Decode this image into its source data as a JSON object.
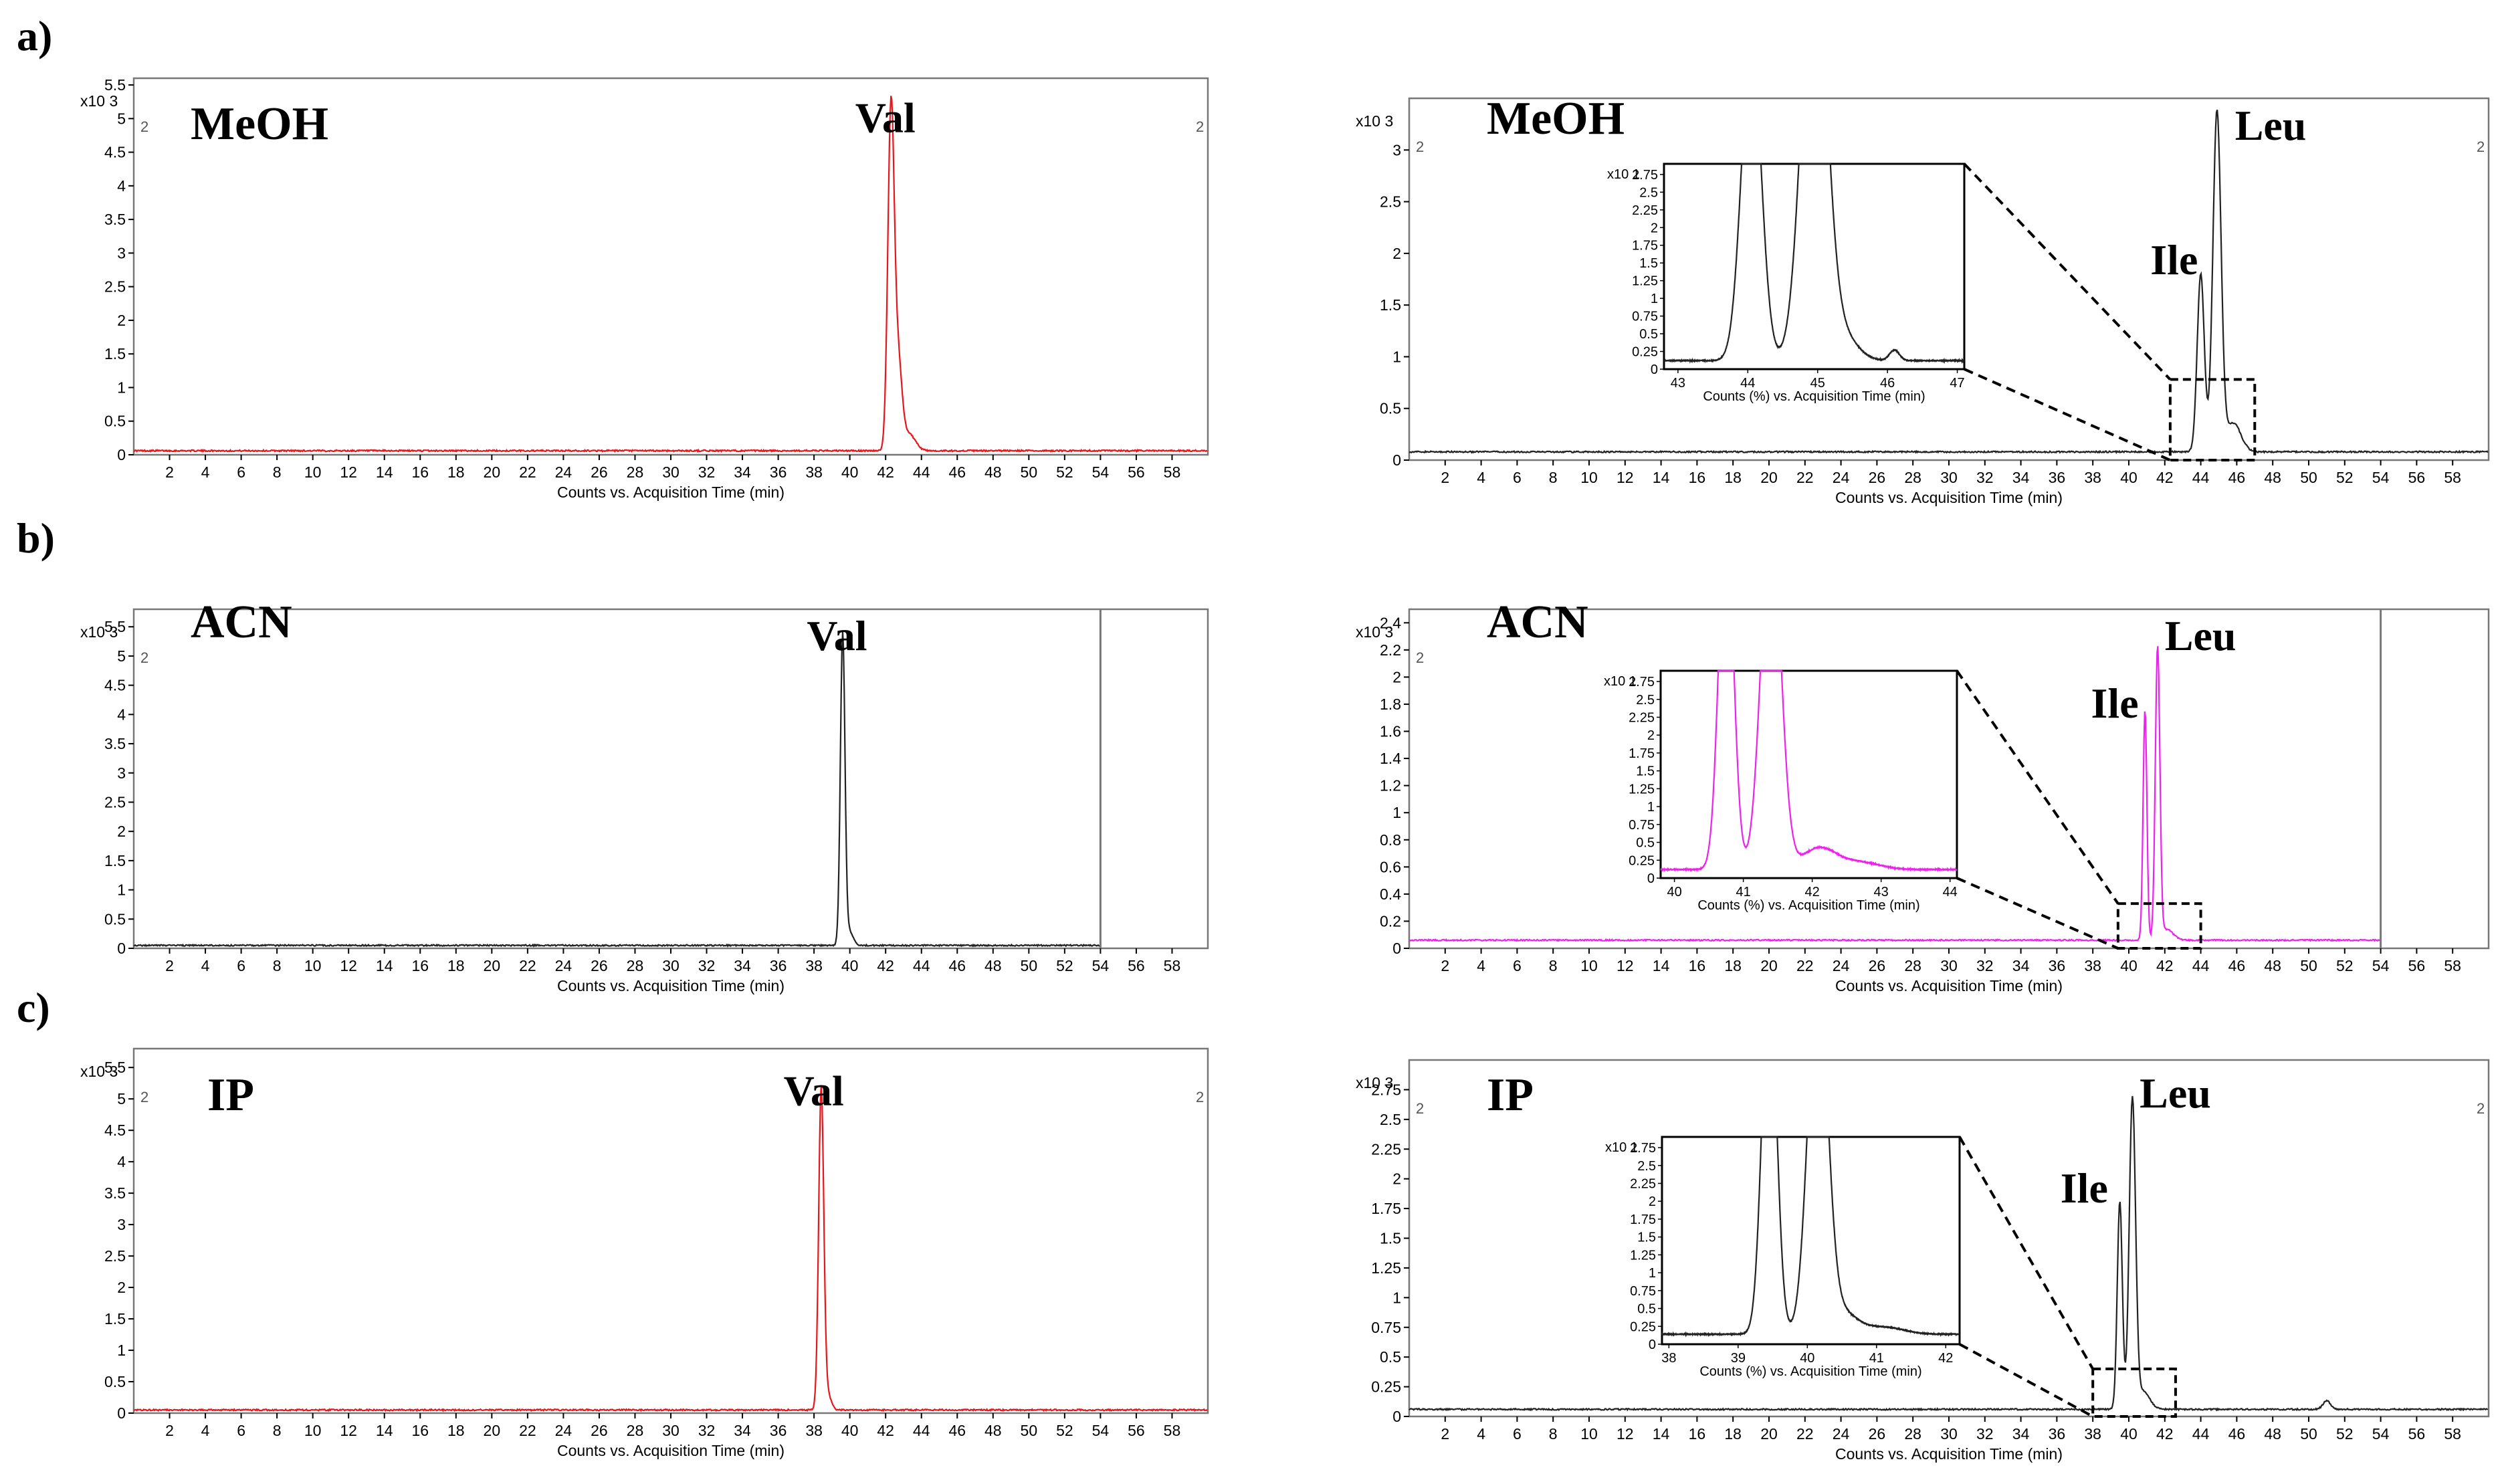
{
  "chart_data": [
    {
      "id": "a-left",
      "row": "a)",
      "type": "line",
      "solvent": "MeOH",
      "xlabel": "Counts vs. Acquisition Time (min)",
      "exponent": "x10 3",
      "xlim": [
        0,
        60
      ],
      "ylim": [
        0,
        5.6
      ],
      "color": "#e8151b",
      "xticks": [
        "2",
        "4",
        "6",
        "8",
        "10",
        "12",
        "14",
        "16",
        "18",
        "20",
        "22",
        "24",
        "26",
        "28",
        "30",
        "32",
        "34",
        "36",
        "38",
        "40",
        "42",
        "44",
        "46",
        "48",
        "50",
        "52",
        "54",
        "56",
        "58"
      ],
      "yticks": [
        "0",
        "0.5",
        "1",
        "1.5",
        "2",
        "2.5",
        "3",
        "3.5",
        "4",
        "4.5",
        "5",
        "5.5"
      ],
      "corner_labels": [
        "2",
        "2"
      ],
      "baseline": 0.06,
      "end": 60,
      "vline": null,
      "peaks": [
        {
          "x": 42.3,
          "h": 5.05,
          "w": 0.25
        },
        {
          "x": 42.7,
          "h": 1.3,
          "w": 0.3
        },
        {
          "x": 43.3,
          "h": 0.25,
          "w": 0.5
        }
      ],
      "annotations": [
        {
          "text": "Val",
          "x": 40.3,
          "y": 4.8
        }
      ]
    },
    {
      "id": "a-right",
      "row": "a)",
      "type": "line",
      "solvent": "MeOH",
      "xlabel": "Counts vs. Acquisition Time (min)",
      "exponent": "x10 3",
      "xlim": [
        0,
        60
      ],
      "ylim": [
        0,
        3.5
      ],
      "color": "#222222",
      "xticks": [
        "2",
        "4",
        "6",
        "8",
        "10",
        "12",
        "14",
        "16",
        "18",
        "20",
        "22",
        "24",
        "26",
        "28",
        "30",
        "32",
        "34",
        "36",
        "38",
        "40",
        "42",
        "44",
        "46",
        "48",
        "50",
        "52",
        "54",
        "56",
        "58"
      ],
      "yticks": [
        "0",
        "0.5",
        "1",
        "1.5",
        "2",
        "2.5",
        "3"
      ],
      "corner_labels": [
        "2",
        "2"
      ],
      "baseline": 0.08,
      "end": 60,
      "vline": null,
      "peaks": [
        {
          "x": 44.0,
          "h": 1.72,
          "w": 0.28
        },
        {
          "x": 44.9,
          "h": 3.28,
          "w": 0.32
        },
        {
          "x": 45.8,
          "h": 0.28,
          "w": 0.6
        }
      ],
      "annotations": [
        {
          "text": "Ile",
          "x": 41.2,
          "y": 1.8
        },
        {
          "text": "Leu",
          "x": 45.9,
          "y": 3.1
        }
      ],
      "zoom_box": {
        "x0": 42.3,
        "x1": 47.0,
        "y0": 0,
        "y1": 0.78
      },
      "inset": {
        "exponent": "x10 1",
        "xlabel": "Counts (%) vs. Acquisition Time (min)",
        "xlim": [
          42.8,
          47.1
        ],
        "ylim": [
          0,
          2.9
        ],
        "xticks": [
          "43",
          "44",
          "45",
          "46",
          "47"
        ],
        "yticks": [
          "0",
          "0.25",
          "0.5",
          "0.75",
          "1",
          "1.25",
          "1.5",
          "1.75",
          "2",
          "2.25",
          "2.5",
          "2.75"
        ],
        "baseline": 0.12,
        "peaks": [
          {
            "x": 44.05,
            "h": 4.5,
            "w": 0.2
          },
          {
            "x": 44.95,
            "h": 6.0,
            "w": 0.25
          },
          {
            "x": 45.35,
            "h": 0.35,
            "w": 0.3
          },
          {
            "x": 46.1,
            "h": 0.15,
            "w": 0.1
          }
        ]
      }
    },
    {
      "id": "b-left",
      "row": "b)",
      "type": "line",
      "solvent": "ACN",
      "xlabel": "Counts vs. Acquisition Time (min)",
      "exponent": "x10 3",
      "xlim": [
        0,
        60
      ],
      "ylim": [
        0,
        5.8
      ],
      "color": "#222222",
      "xticks": [
        "2",
        "4",
        "6",
        "8",
        "10",
        "12",
        "14",
        "16",
        "18",
        "20",
        "22",
        "24",
        "26",
        "28",
        "30",
        "32",
        "34",
        "36",
        "38",
        "40",
        "42",
        "44",
        "46",
        "48",
        "50",
        "52",
        "54",
        "56",
        "58"
      ],
      "yticks": [
        "0",
        "0.5",
        "1",
        "1.5",
        "2",
        "2.5",
        "3",
        "3.5",
        "4",
        "4.5",
        "5",
        "5.5"
      ],
      "corner_labels": [
        "2"
      ],
      "baseline": 0.05,
      "end": 54.0,
      "vline": 54.0,
      "peaks": [
        {
          "x": 39.6,
          "h": 5.3,
          "w": 0.18
        },
        {
          "x": 39.95,
          "h": 0.25,
          "w": 0.3
        }
      ],
      "annotations": [
        {
          "text": "Val",
          "x": 37.6,
          "y": 5.1
        }
      ]
    },
    {
      "id": "b-right",
      "row": "b)",
      "type": "line",
      "solvent": "ACN",
      "xlabel": "Counts vs. Acquisition Time (min)",
      "exponent": "x10 3",
      "xlim": [
        0,
        60
      ],
      "ylim": [
        0,
        2.5
      ],
      "color": "#ee22ee",
      "xticks": [
        "2",
        "4",
        "6",
        "8",
        "10",
        "12",
        "14",
        "16",
        "18",
        "20",
        "22",
        "24",
        "26",
        "28",
        "30",
        "32",
        "34",
        "36",
        "38",
        "40",
        "42",
        "44",
        "46",
        "48",
        "50",
        "52",
        "54",
        "56",
        "58"
      ],
      "yticks": [
        "0",
        "0.2",
        "0.4",
        "0.6",
        "0.8",
        "1",
        "1.2",
        "1.4",
        "1.6",
        "1.8",
        "2",
        "2.2",
        "2.4"
      ],
      "corner_labels": [
        "2"
      ],
      "baseline": 0.06,
      "end": 54.0,
      "vline": 54.0,
      "peaks": [
        {
          "x": 40.9,
          "h": 1.7,
          "w": 0.15
        },
        {
          "x": 41.6,
          "h": 2.15,
          "w": 0.18
        },
        {
          "x": 42.1,
          "h": 0.08,
          "w": 0.5
        }
      ],
      "annotations": [
        {
          "text": "Ile",
          "x": 37.9,
          "y": 1.7
        },
        {
          "text": "Leu",
          "x": 42.0,
          "y": 2.2
        }
      ],
      "zoom_box": {
        "x0": 39.4,
        "x1": 44.0,
        "y0": 0,
        "y1": 0.33
      },
      "inset": {
        "exponent": "x10 1",
        "xlabel": "Counts (%) vs. Acquisition Time (min)",
        "xlim": [
          39.8,
          44.1
        ],
        "ylim": [
          0,
          2.9
        ],
        "xticks": [
          "40",
          "41",
          "42",
          "43",
          "44"
        ],
        "yticks": [
          "0",
          "0.25",
          "0.5",
          "0.75",
          "1",
          "1.25",
          "1.5",
          "1.75",
          "2",
          "2.25",
          "2.5",
          "2.75"
        ],
        "baseline": 0.12,
        "peaks": [
          {
            "x": 40.75,
            "h": 5.0,
            "w": 0.15
          },
          {
            "x": 41.4,
            "h": 5.0,
            "w": 0.2
          },
          {
            "x": 42.1,
            "h": 0.3,
            "w": 0.35
          },
          {
            "x": 42.7,
            "h": 0.1,
            "w": 0.4
          }
        ]
      }
    },
    {
      "id": "c-left",
      "row": "c)",
      "type": "line",
      "solvent": "IP",
      "xlabel": "Counts vs. Acquisition Time (min)",
      "exponent": "x10 3",
      "xlim": [
        0,
        60
      ],
      "ylim": [
        0,
        5.8
      ],
      "color": "#e8151b",
      "xticks": [
        "2",
        "4",
        "6",
        "8",
        "10",
        "12",
        "14",
        "16",
        "18",
        "20",
        "22",
        "24",
        "26",
        "28",
        "30",
        "32",
        "34",
        "36",
        "38",
        "40",
        "42",
        "44",
        "46",
        "48",
        "50",
        "52",
        "54",
        "56",
        "58"
      ],
      "yticks": [
        "0",
        "0.5",
        "1",
        "1.5",
        "2",
        "2.5",
        "3",
        "3.5",
        "4",
        "4.5",
        "5",
        "5.5"
      ],
      "corner_labels": [
        "2",
        "2"
      ],
      "baseline": 0.05,
      "end": 60,
      "vline": null,
      "peaks": [
        {
          "x": 38.4,
          "h": 5.05,
          "w": 0.2
        },
        {
          "x": 38.7,
          "h": 0.3,
          "w": 0.3
        }
      ],
      "annotations": [
        {
          "text": "Val",
          "x": 36.3,
          "y": 4.9
        }
      ]
    },
    {
      "id": "c-right",
      "row": "c)",
      "type": "line",
      "solvent": "IP",
      "xlabel": "Counts vs. Acquisition Time (min)",
      "exponent": "x10 3",
      "xlim": [
        0,
        60
      ],
      "ylim": [
        0,
        3.0
      ],
      "color": "#222222",
      "xticks": [
        "2",
        "4",
        "6",
        "8",
        "10",
        "12",
        "14",
        "16",
        "18",
        "20",
        "22",
        "24",
        "26",
        "28",
        "30",
        "32",
        "34",
        "36",
        "38",
        "40",
        "42",
        "44",
        "46",
        "48",
        "50",
        "52",
        "54",
        "56",
        "58"
      ],
      "yticks": [
        "0",
        "0.25",
        "0.5",
        "0.75",
        "1",
        "1.25",
        "1.5",
        "1.75",
        "2",
        "2.25",
        "2.5",
        "2.75"
      ],
      "corner_labels": [
        "2",
        "2"
      ],
      "baseline": 0.06,
      "end": 60,
      "vline": null,
      "peaks": [
        {
          "x": 39.5,
          "h": 1.75,
          "w": 0.2
        },
        {
          "x": 40.2,
          "h": 2.6,
          "w": 0.25
        },
        {
          "x": 40.8,
          "h": 0.15,
          "w": 0.5
        },
        {
          "x": 51.0,
          "h": 0.07,
          "w": 0.3
        }
      ],
      "annotations": [
        {
          "text": "Ile",
          "x": 36.2,
          "y": 1.8
        },
        {
          "text": "Leu",
          "x": 40.6,
          "y": 2.6
        }
      ],
      "zoom_box": {
        "x0": 38.0,
        "x1": 42.6,
        "y0": 0,
        "y1": 0.4
      },
      "inset": {
        "exponent": "x10 1",
        "xlabel": "Counts (%) vs. Acquisition Time (min)",
        "xlim": [
          37.9,
          42.2
        ],
        "ylim": [
          0,
          2.9
        ],
        "xticks": [
          "38",
          "39",
          "40",
          "41",
          "42"
        ],
        "yticks": [
          "0",
          "0.25",
          "0.5",
          "0.75",
          "1",
          "1.25",
          "1.5",
          "1.75",
          "2",
          "2.25",
          "2.5",
          "2.75"
        ],
        "baseline": 0.14,
        "peaks": [
          {
            "x": 39.45,
            "h": 5.0,
            "w": 0.15
          },
          {
            "x": 40.15,
            "h": 5.0,
            "w": 0.2
          },
          {
            "x": 40.5,
            "h": 0.3,
            "w": 0.3
          },
          {
            "x": 41.1,
            "h": 0.1,
            "w": 0.4
          }
        ]
      }
    }
  ]
}
